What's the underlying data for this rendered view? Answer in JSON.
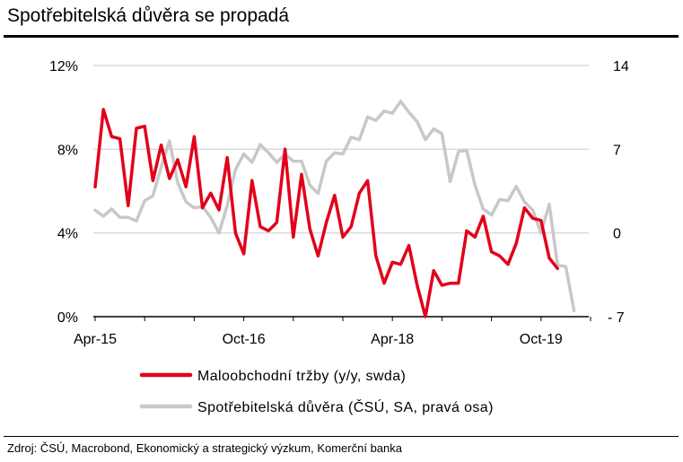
{
  "title": "Spotřebitelská důvěra se propadá",
  "source": "Zdroj: ČSÚ, Macrobond, Ekonomický a strategický výzkum, Komerční banka",
  "colors": {
    "red": "#e2001a",
    "gray": "#c8c8c8",
    "grid": "#d9d9d9"
  },
  "chart_data": {
    "type": "line",
    "title": "Spotřebitelská důvěra se propadá",
    "x_tick_labels": [
      "Apr-15",
      "Oct-16",
      "Apr-18",
      "Oct-19"
    ],
    "x_tick_index": [
      0,
      18,
      36,
      54
    ],
    "y_left": {
      "ylim": [
        0,
        12
      ],
      "ticks": [
        0,
        4,
        8,
        12
      ],
      "tick_labels": [
        "0%",
        "4%",
        "8%",
        "12%"
      ]
    },
    "y_right": {
      "ylim": [
        -7,
        14
      ],
      "ticks": [
        -7,
        0,
        7,
        14
      ],
      "tick_labels": [
        "- 7",
        "0",
        "7",
        "14"
      ]
    },
    "series": [
      {
        "name": "Maloobchodní tržby (y/y, swda)",
        "axis": "left",
        "color": "#e2001a",
        "start_index": 0,
        "values": [
          6.2,
          9.9,
          8.6,
          8.5,
          5.3,
          9.0,
          9.1,
          6.5,
          8.2,
          6.6,
          7.5,
          6.2,
          8.6,
          5.2,
          5.9,
          5.1,
          7.6,
          4.0,
          3.0,
          6.5,
          4.3,
          4.1,
          4.5,
          8.0,
          3.8,
          6.8,
          4.2,
          2.9,
          4.5,
          5.8,
          3.8,
          4.3,
          5.9,
          6.5,
          2.9,
          1.6,
          2.6,
          2.5,
          3.4,
          1.5,
          0.0,
          2.2,
          1.5,
          1.6,
          1.6,
          4.1,
          3.8,
          4.8,
          3.1,
          2.9,
          2.5,
          3.5,
          5.2,
          4.7,
          4.6,
          2.8,
          2.3
        ]
      },
      {
        "name": "Spotřebitelská důvěra (ČSÚ, SA, pravá osa)",
        "axis": "right",
        "color": "#c8c8c8",
        "start_index": 0,
        "values": [
          1.9,
          1.4,
          2.0,
          1.3,
          1.3,
          1.0,
          2.7,
          3.1,
          5.5,
          7.7,
          4.2,
          2.6,
          2.1,
          2.2,
          1.3,
          0.0,
          2.3,
          5.3,
          6.6,
          5.9,
          7.4,
          6.7,
          5.9,
          6.6,
          6.0,
          6.0,
          4.0,
          3.3,
          6.0,
          6.7,
          6.6,
          8.0,
          7.8,
          9.7,
          9.4,
          10.2,
          10.0,
          11.0,
          10.1,
          9.3,
          7.8,
          8.7,
          8.3,
          4.3,
          6.8,
          6.9,
          4.0,
          2.0,
          1.5,
          2.8,
          2.7,
          3.9,
          2.6,
          1.9,
          0.0,
          2.4,
          -2.7,
          -2.8,
          -6.5
        ]
      }
    ],
    "legend": [
      {
        "label": "Maloobchodní tržby (y/y, swda)",
        "color": "#e2001a"
      },
      {
        "label": "Spotřebitelská důvěra (ČSÚ, SA, pravá osa)",
        "color": "#c8c8c8"
      }
    ],
    "legend_position": "bottom"
  }
}
